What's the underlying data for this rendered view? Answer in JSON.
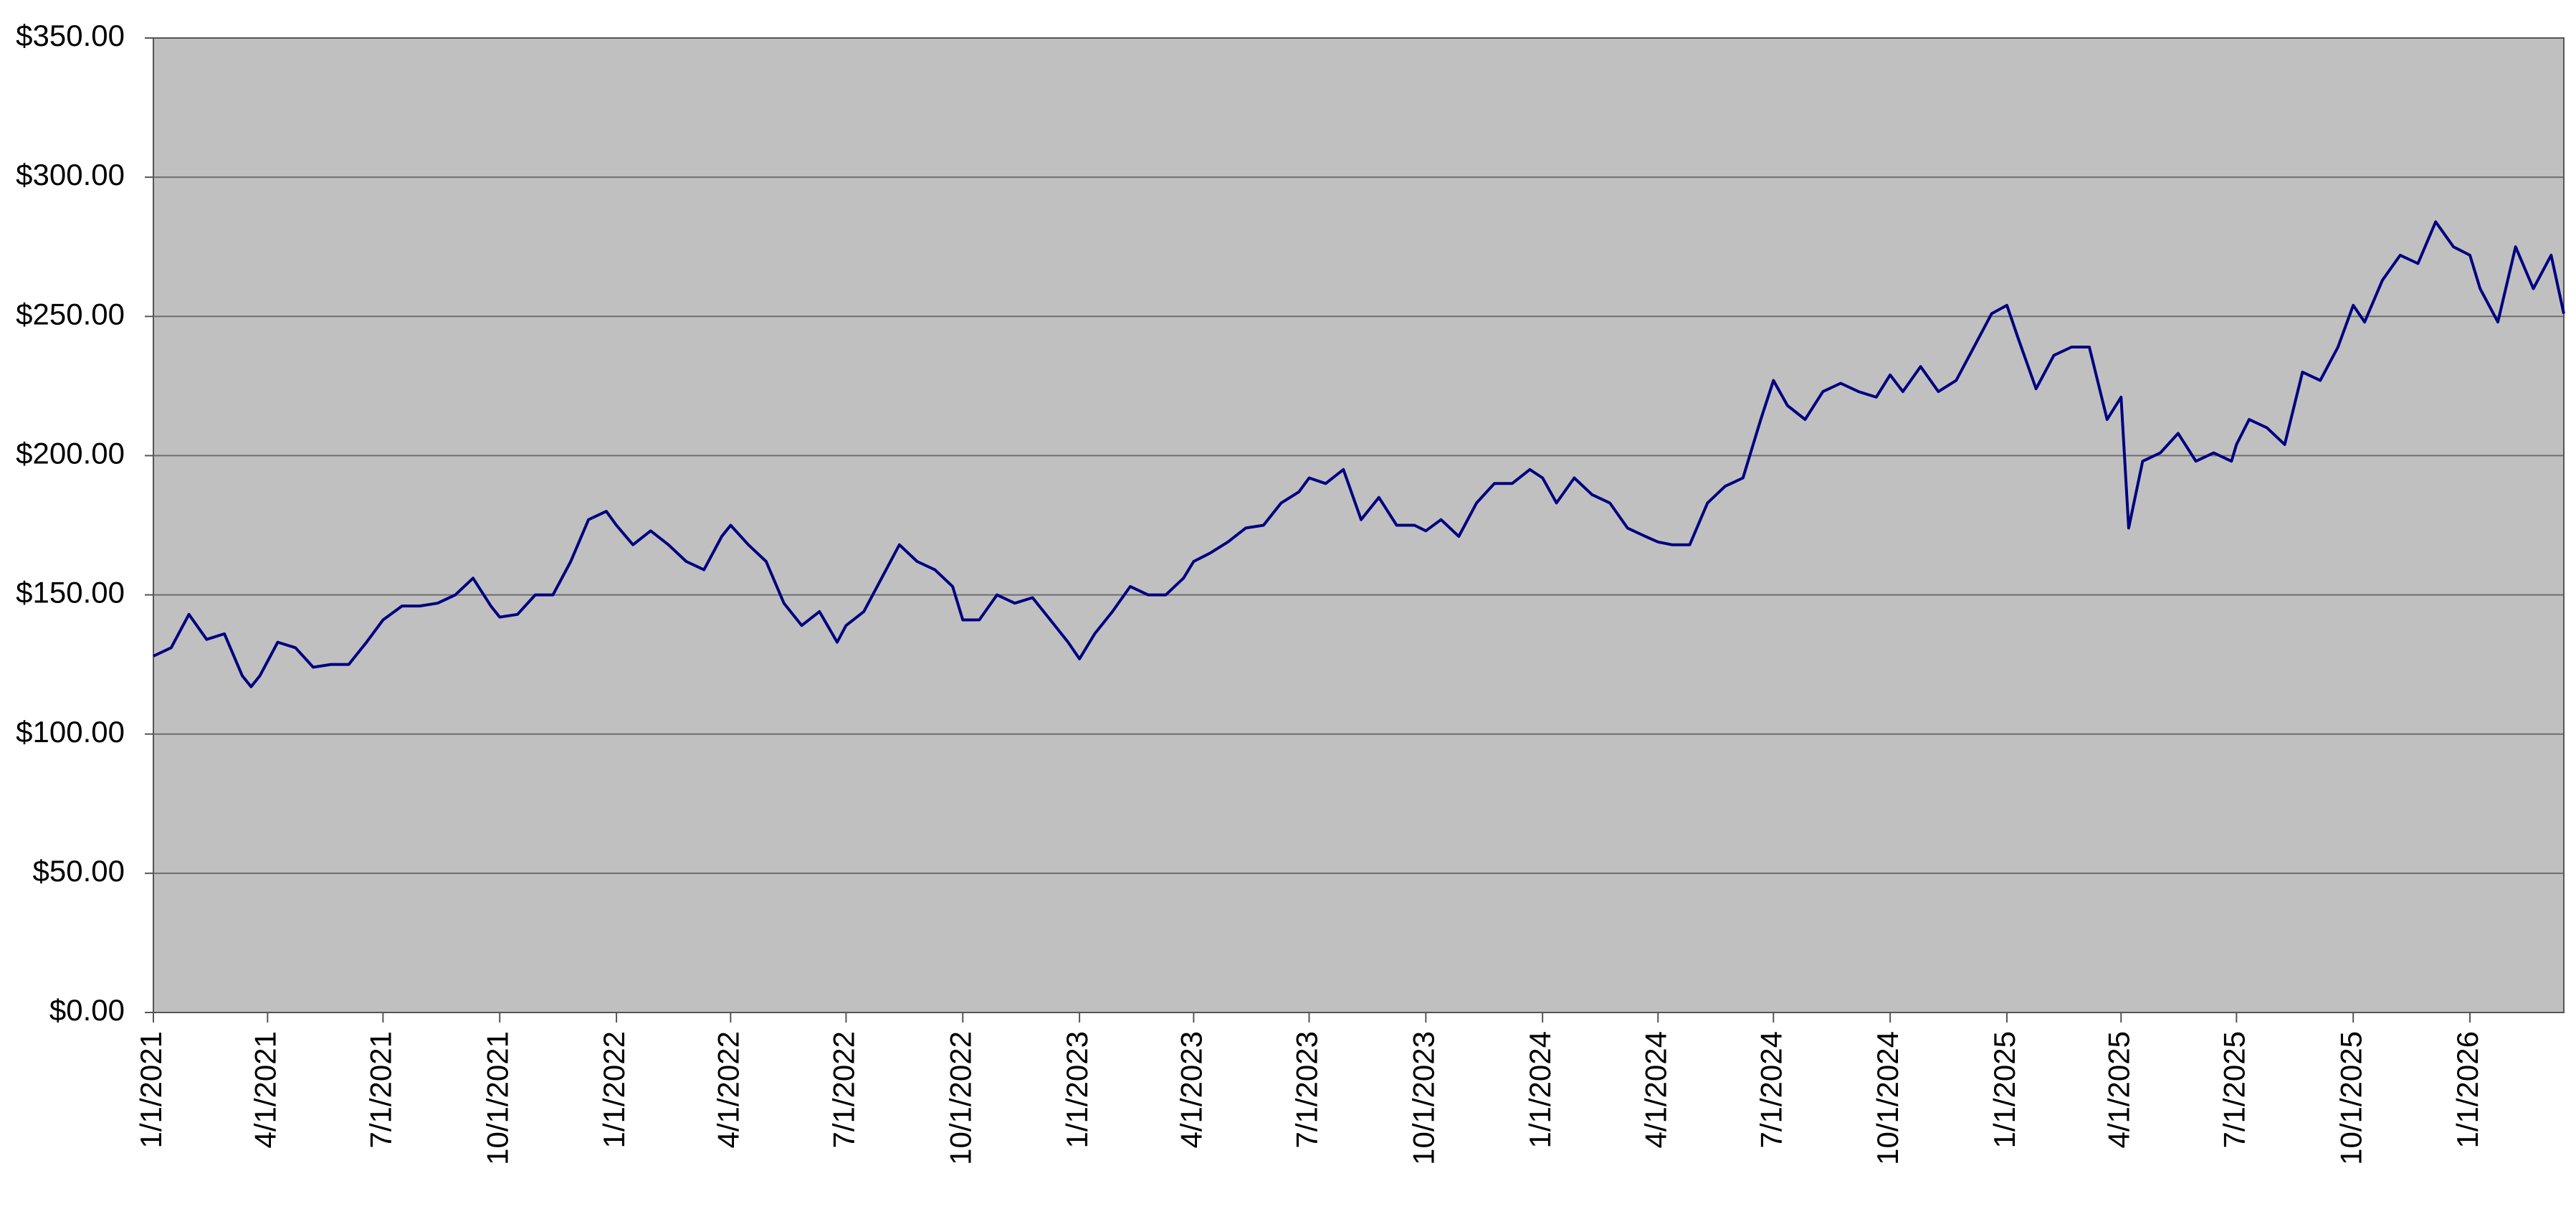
{
  "chart_data": {
    "type": "line",
    "x": [
      "1/1/2021",
      "1/15/2021",
      "1/29/2021",
      "2/12/2021",
      "2/26/2021",
      "3/12/2021",
      "3/19/2021",
      "3/26/2021",
      "4/9/2021",
      "4/23/2021",
      "5/7/2021",
      "5/21/2021",
      "6/4/2021",
      "6/18/2021",
      "7/1/2021",
      "7/16/2021",
      "7/30/2021",
      "8/13/2021",
      "8/27/2021",
      "9/10/2021",
      "9/24/2021",
      "10/1/2021",
      "10/15/2021",
      "10/29/2021",
      "11/12/2021",
      "11/26/2021",
      "12/10/2021",
      "12/24/2021",
      "1/1/2022",
      "1/14/2022",
      "1/28/2022",
      "2/11/2022",
      "2/25/2022",
      "3/11/2022",
      "3/25/2022",
      "4/1/2022",
      "4/15/2022",
      "4/29/2022",
      "5/13/2022",
      "5/27/2022",
      "6/10/2022",
      "6/24/2022",
      "7/1/2022",
      "7/15/2022",
      "7/29/2022",
      "8/12/2022",
      "8/26/2022",
      "9/9/2022",
      "9/23/2022",
      "10/1/2022",
      "10/14/2022",
      "10/28/2022",
      "11/11/2022",
      "11/25/2022",
      "12/9/2022",
      "12/23/2022",
      "1/1/2023",
      "1/13/2023",
      "1/27/2023",
      "2/10/2023",
      "2/24/2023",
      "3/10/2023",
      "3/24/2023",
      "4/1/2023",
      "4/14/2023",
      "4/28/2023",
      "5/12/2023",
      "5/26/2023",
      "6/9/2023",
      "6/23/2023",
      "7/1/2023",
      "7/14/2023",
      "7/28/2023",
      "8/11/2023",
      "8/25/2023",
      "9/8/2023",
      "9/22/2023",
      "10/1/2023",
      "10/13/2023",
      "10/27/2023",
      "11/10/2023",
      "11/24/2023",
      "12/8/2023",
      "12/22/2023",
      "1/1/2024",
      "1/12/2024",
      "1/26/2024",
      "2/9/2024",
      "2/23/2024",
      "3/8/2024",
      "3/22/2024",
      "4/1/2024",
      "4/12/2024",
      "4/26/2024",
      "5/10/2024",
      "5/24/2024",
      "6/7/2024",
      "6/21/2024",
      "7/1/2024",
      "7/12/2024",
      "7/26/2024",
      "8/9/2024",
      "8/23/2024",
      "9/6/2024",
      "9/20/2024",
      "10/1/2024",
      "10/11/2024",
      "10/25/2024",
      "11/8/2024",
      "11/22/2024",
      "12/6/2024",
      "12/20/2024",
      "1/1/2025",
      "1/10/2025",
      "1/24/2025",
      "2/7/2025",
      "2/21/2025",
      "3/7/2025",
      "3/21/2025",
      "4/1/2025",
      "4/7/2025",
      "4/18/2025",
      "5/2/2025",
      "5/16/2025",
      "5/30/2025",
      "6/13/2025",
      "6/27/2025",
      "7/1/2025",
      "7/11/2025",
      "7/25/2025",
      "8/8/2025",
      "8/22/2025",
      "9/5/2025",
      "9/19/2025",
      "10/1/2025",
      "10/10/2025",
      "10/24/2025",
      "11/7/2025",
      "11/21/2025",
      "12/5/2025",
      "12/19/2025",
      "1/1/2026",
      "1/9/2026",
      "1/23/2026",
      "2/6/2026",
      "2/20/2026",
      "3/6/2026",
      "3/16/2026"
    ],
    "series": [
      {
        "color": "#000080",
        "values": [
          128,
          131,
          143,
          134,
          136,
          121,
          117,
          121,
          133,
          131,
          124,
          125,
          125,
          133,
          141,
          146,
          146,
          147,
          150,
          156,
          146,
          142,
          143,
          150,
          150,
          162,
          177,
          180,
          175,
          168,
          173,
          168,
          162,
          159,
          171,
          175,
          168,
          162,
          147,
          139,
          144,
          133,
          139,
          144,
          156,
          168,
          162,
          159,
          153,
          141,
          141,
          150,
          147,
          149,
          141,
          133,
          127,
          136,
          144,
          153,
          150,
          150,
          156,
          162,
          165,
          169,
          174,
          175,
          183,
          187,
          192,
          190,
          195,
          177,
          185,
          175,
          175,
          173,
          177,
          171,
          183,
          190,
          190,
          195,
          192,
          183,
          192,
          186,
          183,
          174,
          171,
          169,
          168,
          168,
          183,
          189,
          192,
          213,
          227,
          218,
          213,
          223,
          226,
          223,
          221,
          229,
          223,
          232,
          223,
          227,
          239,
          251,
          254,
          242,
          224,
          236,
          239,
          239,
          213,
          221,
          174,
          198,
          201,
          208,
          198,
          201,
          198,
          204,
          213,
          210,
          204,
          230,
          227,
          239,
          254,
          248,
          263,
          272,
          269,
          284,
          275,
          272,
          260,
          248,
          275,
          260,
          272,
          251
        ]
      }
    ],
    "xlim": [
      "1/1/2021",
      "3/16/2026"
    ],
    "xticks": [
      "1/1/2021",
      "4/1/2021",
      "7/1/2021",
      "10/1/2021",
      "1/1/2022",
      "4/1/2022",
      "7/1/2022",
      "10/1/2022",
      "1/1/2023",
      "4/1/2023",
      "7/1/2023",
      "10/1/2023",
      "1/1/2024",
      "4/1/2024",
      "7/1/2024",
      "10/1/2024",
      "1/1/2025",
      "4/1/2025",
      "7/1/2025",
      "10/1/2025",
      "1/1/2026"
    ],
    "ylim": [
      0,
      350
    ],
    "yticks": [
      {
        "value": 0,
        "label": "$0.00"
      },
      {
        "value": 50,
        "label": "$50.00"
      },
      {
        "value": 100,
        "label": "$100.00"
      },
      {
        "value": 150,
        "label": "$150.00"
      },
      {
        "value": 200,
        "label": "$200.00"
      },
      {
        "value": 250,
        "label": "$250.00"
      },
      {
        "value": 300,
        "label": "$300.00"
      },
      {
        "value": 350,
        "label": "$350.00"
      }
    ],
    "grid": true
  }
}
